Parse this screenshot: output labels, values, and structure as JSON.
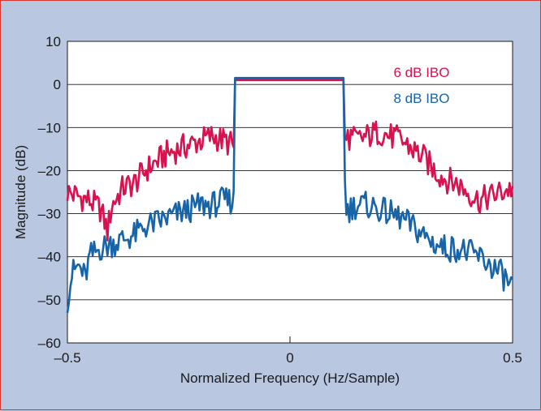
{
  "chart_data": {
    "type": "line",
    "title": "",
    "xlabel": "Normalized Frequency (Hz/Sample)",
    "ylabel": "Magnitude (dB)",
    "xlim": [
      -0.5,
      0.5
    ],
    "ylim": [
      -60,
      10
    ],
    "x_ticks": [
      -0.5,
      0,
      0.5
    ],
    "x_tick_labels": [
      "–0.5",
      "0",
      "0.5"
    ],
    "y_ticks": [
      10,
      0,
      -10,
      -20,
      -30,
      -40,
      -50,
      -60
    ],
    "y_tick_labels": [
      "10",
      "0",
      "–10",
      "–20",
      "–30",
      "–40",
      "–50",
      "–60"
    ],
    "grid": "horizontal",
    "legend_position": "top-right",
    "colors": {
      "plot_bg": "#ffffff",
      "page_bg": "#b9c7e1"
    },
    "series": [
      {
        "name": "6 dB IBO",
        "color": "#d8124f",
        "x": [
          -0.5,
          -0.475,
          -0.45,
          -0.425,
          -0.41,
          -0.4,
          -0.375,
          -0.35,
          -0.325,
          -0.3,
          -0.275,
          -0.25,
          -0.225,
          -0.2,
          -0.175,
          -0.15,
          -0.13,
          -0.126,
          -0.124,
          -0.12,
          0,
          0.12,
          0.124,
          0.126,
          0.13,
          0.15,
          0.175,
          0.2,
          0.225,
          0.25,
          0.275,
          0.3,
          0.325,
          0.35,
          0.375,
          0.4,
          0.425,
          0.45,
          0.475,
          0.5
        ],
        "y": [
          -25,
          -26,
          -27,
          -29,
          -34,
          -28,
          -24,
          -23,
          -20,
          -18,
          -16,
          -15,
          -14,
          -13,
          -12,
          -13,
          -14,
          -15,
          1,
          1,
          1,
          1,
          -15,
          -14,
          -12,
          -13,
          -12,
          -11,
          -12,
          -13,
          -15,
          -17,
          -20,
          -22,
          -23,
          -25,
          -27,
          -26,
          -25,
          -24
        ]
      },
      {
        "name": "8 dB IBO",
        "color": "#1764a8",
        "x": [
          -0.5,
          -0.49,
          -0.475,
          -0.46,
          -0.45,
          -0.425,
          -0.4,
          -0.375,
          -0.35,
          -0.325,
          -0.3,
          -0.275,
          -0.25,
          -0.225,
          -0.2,
          -0.175,
          -0.15,
          -0.13,
          -0.126,
          -0.124,
          -0.12,
          0,
          0.12,
          0.124,
          0.126,
          0.13,
          0.15,
          0.175,
          0.2,
          0.225,
          0.25,
          0.275,
          0.3,
          0.325,
          0.35,
          0.375,
          0.4,
          0.425,
          0.45,
          0.475,
          0.49,
          0.5
        ],
        "y": [
          -50,
          -44,
          -42,
          -45,
          -40,
          -38,
          -37,
          -36,
          -35,
          -33,
          -32,
          -31,
          -30,
          -29,
          -28,
          -28,
          -27,
          -27,
          -27,
          1.5,
          1.5,
          1.5,
          1.5,
          -27,
          -29,
          -29,
          -28,
          -28,
          -29,
          -30,
          -31,
          -33,
          -35,
          -37,
          -38,
          -38,
          -39,
          -40,
          -42,
          -44,
          -46,
          -47
        ]
      }
    ]
  }
}
